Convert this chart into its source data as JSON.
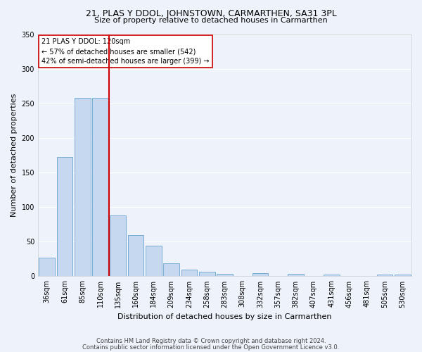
{
  "title1": "21, PLAS Y DDOL, JOHNSTOWN, CARMARTHEN, SA31 3PL",
  "title2": "Size of property relative to detached houses in Carmarthen",
  "xlabel": "Distribution of detached houses by size in Carmarthen",
  "ylabel": "Number of detached properties",
  "footer1": "Contains HM Land Registry data © Crown copyright and database right 2024.",
  "footer2": "Contains public sector information licensed under the Open Government Licence v3.0.",
  "annotation_line1": "21 PLAS Y DDOL: 120sqm",
  "annotation_line2": "← 57% of detached houses are smaller (542)",
  "annotation_line3": "42% of semi-detached houses are larger (399) →",
  "bar_color": "#c5d8f0",
  "bar_edge_color": "#7aaed4",
  "vline_color": "#cc0000",
  "categories": [
    "36sqm",
    "61sqm",
    "85sqm",
    "110sqm",
    "135sqm",
    "160sqm",
    "184sqm",
    "209sqm",
    "234sqm",
    "258sqm",
    "283sqm",
    "308sqm",
    "332sqm",
    "357sqm",
    "382sqm",
    "407sqm",
    "431sqm",
    "456sqm",
    "481sqm",
    "505sqm",
    "530sqm"
  ],
  "values": [
    27,
    173,
    258,
    258,
    88,
    60,
    44,
    19,
    10,
    7,
    3,
    0,
    5,
    0,
    4,
    0,
    2,
    0,
    0,
    2,
    2
  ],
  "vline_bar_index": 3,
  "ylim": [
    0,
    350
  ],
  "yticks": [
    0,
    50,
    100,
    150,
    200,
    250,
    300,
    350
  ],
  "background_color": "#eef2fb",
  "grid_color": "#ffffff",
  "annotation_box_facecolor": "#ffffff",
  "annotation_box_edgecolor": "#cc0000",
  "title1_fontsize": 9,
  "title2_fontsize": 8,
  "ylabel_fontsize": 8,
  "xlabel_fontsize": 8,
  "tick_fontsize": 7,
  "footer_fontsize": 6
}
